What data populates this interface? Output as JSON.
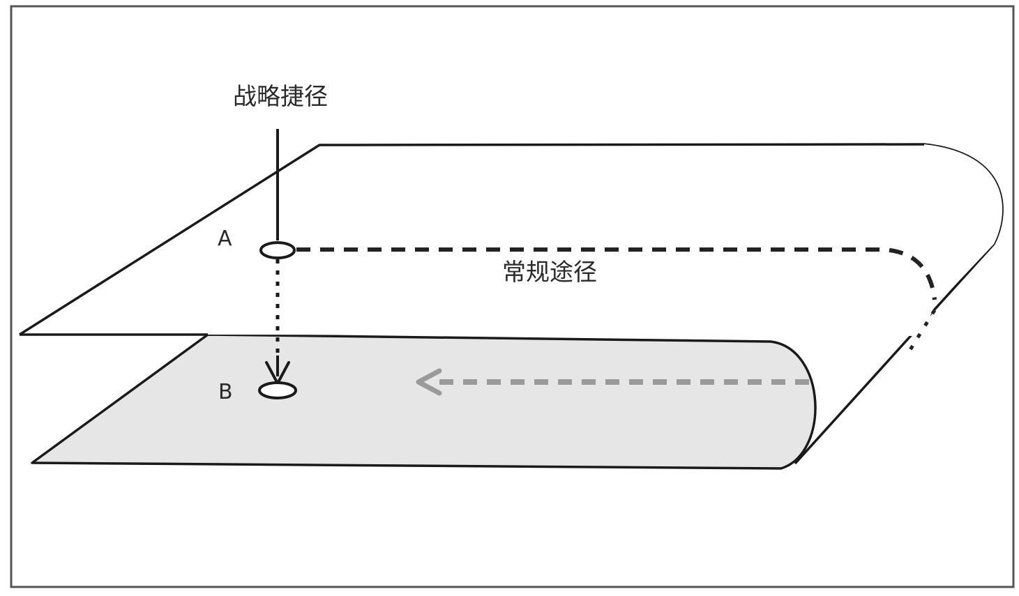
{
  "diagram": {
    "shortcut_label": "战略捷径",
    "regular_path_label": "常规途径",
    "point_a_label": "A",
    "point_b_label": "B"
  },
  "colors": {
    "stroke": "#1a1a1a",
    "dash": "#222222",
    "lower_plane_fill": "#e6e6e6",
    "lower_dash": "#9a9a9a",
    "background": "#ffffff",
    "frame": "#555555"
  }
}
